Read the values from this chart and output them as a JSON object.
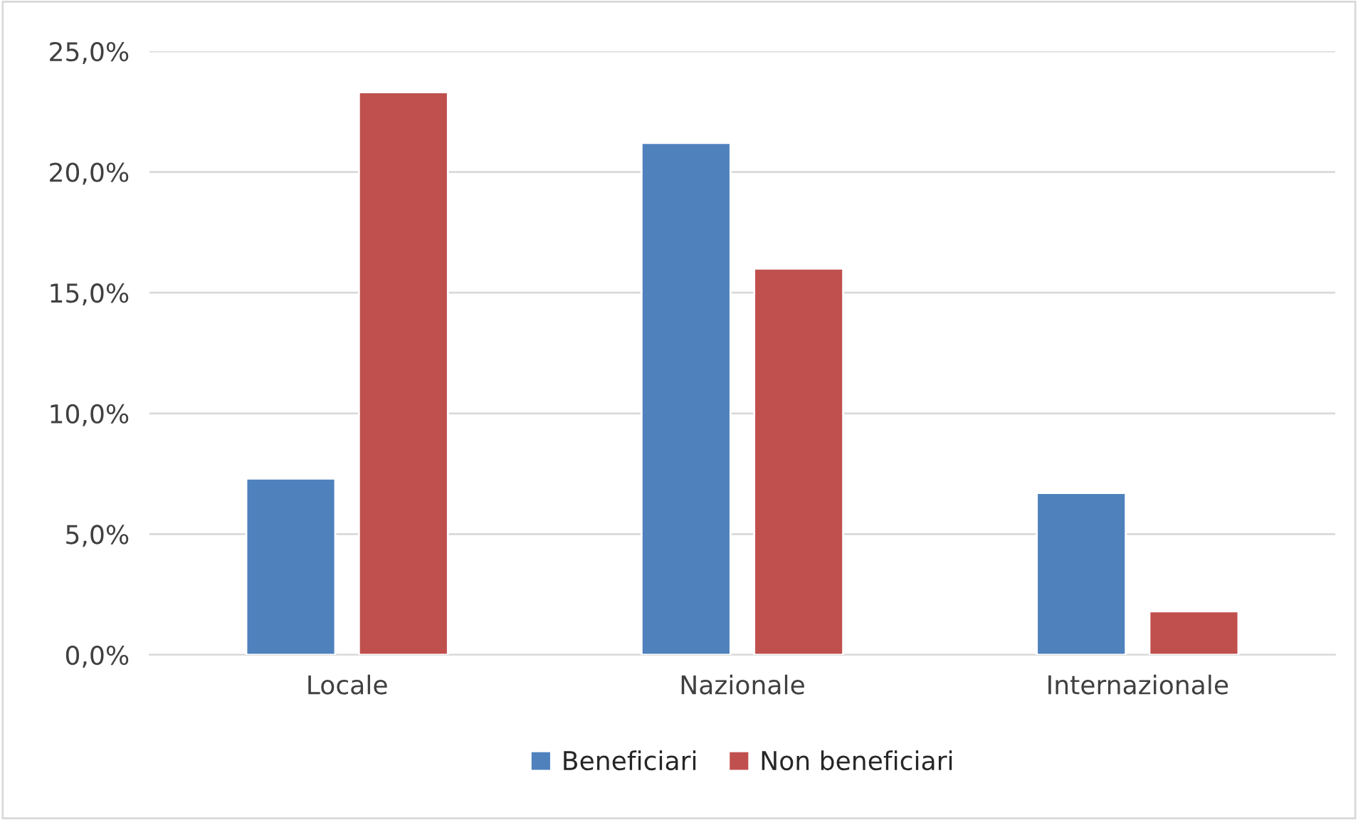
{
  "chart_data": {
    "type": "bar",
    "categories": [
      "Locale",
      "Nazionale",
      "Internazionale"
    ],
    "series": [
      {
        "name": "Beneficiari",
        "color": "#4f81bd",
        "values": [
          7.3,
          21.2,
          6.7
        ]
      },
      {
        "name": "Non beneficiari",
        "color": "#c0504d",
        "values": [
          23.3,
          16.0,
          1.8
        ]
      }
    ],
    "ylim": [
      0,
      25
    ],
    "yticks": [
      {
        "value": 0,
        "label": "0,0%"
      },
      {
        "value": 5,
        "label": "5,0%"
      },
      {
        "value": 10,
        "label": "10,0%"
      },
      {
        "value": 15,
        "label": "15,0%"
      },
      {
        "value": 20,
        "label": "20,0%"
      },
      {
        "value": 25,
        "label": "25,0%"
      }
    ],
    "grid": "y",
    "legend": "bottom"
  }
}
